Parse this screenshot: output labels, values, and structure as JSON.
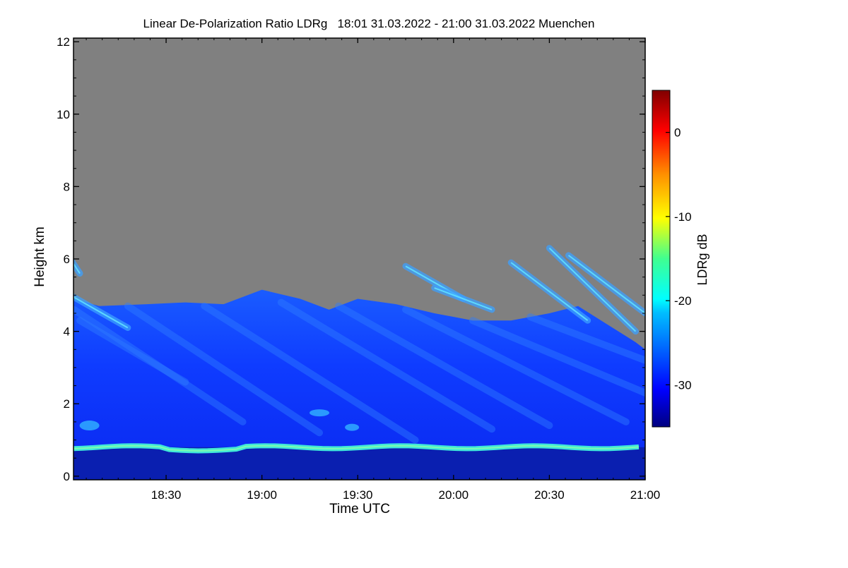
{
  "chart_data": {
    "type": "heatmap",
    "title": "Linear De-Polarization Ratio LDRg   18:01 31.03.2022 - 21:00 31.03.2022 Muenchen",
    "xlabel": "Time UTC",
    "ylabel": "Height km",
    "x_range_hours": [
      18.0167,
      21.0
    ],
    "x_ticks": [
      {
        "label": "18:30",
        "value": 18.5
      },
      {
        "label": "19:00",
        "value": 19.0
      },
      {
        "label": "19:30",
        "value": 19.5
      },
      {
        "label": "20:00",
        "value": 20.0
      },
      {
        "label": "20:30",
        "value": 20.5
      },
      {
        "label": "21:00",
        "value": 21.0
      }
    ],
    "y_range_km": [
      -0.1,
      12.1
    ],
    "y_ticks": [
      {
        "label": "0",
        "value": 0
      },
      {
        "label": "2",
        "value": 2
      },
      {
        "label": "4",
        "value": 4
      },
      {
        "label": "6",
        "value": 6
      },
      {
        "label": "8",
        "value": 8
      },
      {
        "label": "10",
        "value": 10
      },
      {
        "label": "12",
        "value": 12
      }
    ],
    "colorbar": {
      "label": "LDRg dB",
      "range": [
        -35,
        5
      ],
      "ticks": [
        {
          "label": "0",
          "value": 0
        },
        {
          "label": "-10",
          "value": -10
        },
        {
          "label": "-20",
          "value": -20
        },
        {
          "label": "-30",
          "value": -30
        }
      ]
    },
    "features": {
      "no_signal_color": "#808080",
      "cloud_top_profile_km": [
        [
          18.0167,
          4.9
        ],
        [
          18.15,
          4.7
        ],
        [
          18.4,
          4.75
        ],
        [
          18.6,
          4.8
        ],
        [
          18.8,
          4.75
        ],
        [
          19.0,
          5.15
        ],
        [
          19.2,
          4.9
        ],
        [
          19.35,
          4.6
        ],
        [
          19.5,
          4.9
        ],
        [
          19.7,
          4.75
        ],
        [
          19.9,
          4.5
        ],
        [
          20.1,
          4.3
        ],
        [
          20.3,
          4.3
        ],
        [
          20.5,
          4.5
        ],
        [
          20.65,
          4.7
        ],
        [
          20.8,
          4.2
        ],
        [
          20.95,
          3.7
        ],
        [
          21.0,
          3.5
        ]
      ],
      "boundary_layer_top_km": 0.8,
      "boundary_layer_ldr_db": -22,
      "cloud_typical_ldr_db": -30,
      "upper_streak_ldr_db": -24
    }
  }
}
